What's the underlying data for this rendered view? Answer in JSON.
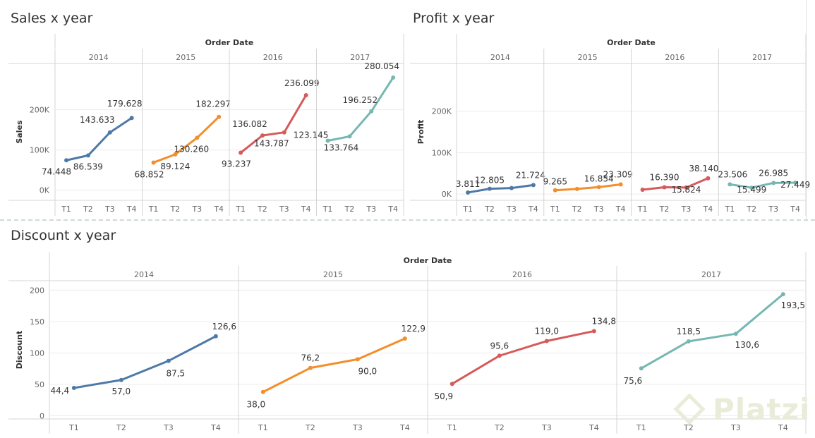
{
  "sheets": {
    "sales_title": "Sales x year",
    "profit_title": "Profit x year",
    "discount_title": "Discount x year"
  },
  "watermark": "Platzi",
  "colors": {
    "2014": "#4e79a7",
    "2015": "#f28e2b",
    "2016": "#d65a5a",
    "2017": "#76b7b2",
    "grid": "#ececec",
    "axis_text": "#666666"
  },
  "chart_data": [
    {
      "id": "sales",
      "type": "line",
      "title": "Sales x year",
      "column_header": "Order Date",
      "ylabel": "Sales",
      "ylim": [
        -25000,
        315000
      ],
      "yticks": [
        {
          "v": 0,
          "label": "0K"
        },
        {
          "v": 100000,
          "label": "100K"
        },
        {
          "v": 200000,
          "label": "200K"
        }
      ],
      "categories": [
        "T1",
        "T2",
        "T3",
        "T4"
      ],
      "series": [
        {
          "name": "2014",
          "values": [
            74448,
            86539,
            143633,
            179628
          ],
          "labels": [
            "74.448",
            "86.539",
            "143.633",
            "179.628"
          ]
        },
        {
          "name": "2015",
          "values": [
            68852,
            89124,
            130260,
            182297
          ],
          "labels": [
            "68.852",
            "89.124",
            "130.260",
            "182.297"
          ]
        },
        {
          "name": "2016",
          "values": [
            93237,
            136082,
            143787,
            236099
          ],
          "labels": [
            "93.237",
            "136.082",
            "143.787",
            "236.099"
          ]
        },
        {
          "name": "2017",
          "values": [
            123145,
            133764,
            196252,
            280054
          ],
          "labels": [
            "123.145",
            "133.764",
            "196.252",
            "280.054"
          ]
        }
      ]
    },
    {
      "id": "profit",
      "type": "line",
      "title": "Profit x year",
      "column_header": "Order Date",
      "ylabel": "Profit",
      "ylim": [
        -15000,
        315000
      ],
      "yticks": [
        {
          "v": 0,
          "label": "0K"
        },
        {
          "v": 100000,
          "label": "100K"
        },
        {
          "v": 200000,
          "label": "200K"
        }
      ],
      "categories": [
        "T1",
        "T2",
        "T3",
        "T4"
      ],
      "series": [
        {
          "name": "2014",
          "values": [
            3811,
            12805,
            14500,
            21724
          ],
          "labels": [
            "3.811",
            "12.805",
            "",
            "21.724"
          ]
        },
        {
          "name": "2015",
          "values": [
            9265,
            12500,
            16854,
            23309
          ],
          "labels": [
            "9.265",
            "",
            "16.854",
            "23.309"
          ]
        },
        {
          "name": "2016",
          "values": [
            10500,
            16390,
            15824,
            38140
          ],
          "labels": [
            "",
            "16.390",
            "15.824",
            "38.140"
          ]
        },
        {
          "name": "2017",
          "values": [
            23506,
            15499,
            26985,
            27449
          ],
          "labels": [
            "23.506",
            "15.499",
            "26.985",
            "27.449"
          ]
        }
      ]
    },
    {
      "id": "discount",
      "type": "line",
      "title": "Discount x year",
      "column_header": "Order Date",
      "ylabel": "Discount",
      "ylim": [
        -5,
        215
      ],
      "yticks": [
        {
          "v": 0,
          "label": "0"
        },
        {
          "v": 50,
          "label": "50"
        },
        {
          "v": 100,
          "label": "100"
        },
        {
          "v": 150,
          "label": "150"
        },
        {
          "v": 200,
          "label": "200"
        }
      ],
      "categories": [
        "T1",
        "T2",
        "T3",
        "T4"
      ],
      "series": [
        {
          "name": "2014",
          "values": [
            44.4,
            57.0,
            87.5,
            126.6
          ],
          "labels": [
            "44,4",
            "57,0",
            "87,5",
            "126,6"
          ]
        },
        {
          "name": "2015",
          "values": [
            38.0,
            76.2,
            90.0,
            122.9
          ],
          "labels": [
            "38,0",
            "76,2",
            "90,0",
            "122,9"
          ]
        },
        {
          "name": "2016",
          "values": [
            50.9,
            95.6,
            119.0,
            134.8
          ],
          "labels": [
            "50,9",
            "95,6",
            "119,0",
            "134,8"
          ]
        },
        {
          "name": "2017",
          "values": [
            75.6,
            118.5,
            130.6,
            193.5
          ],
          "labels": [
            "75,6",
            "118,5",
            "130,6",
            "193,5"
          ]
        }
      ]
    }
  ]
}
